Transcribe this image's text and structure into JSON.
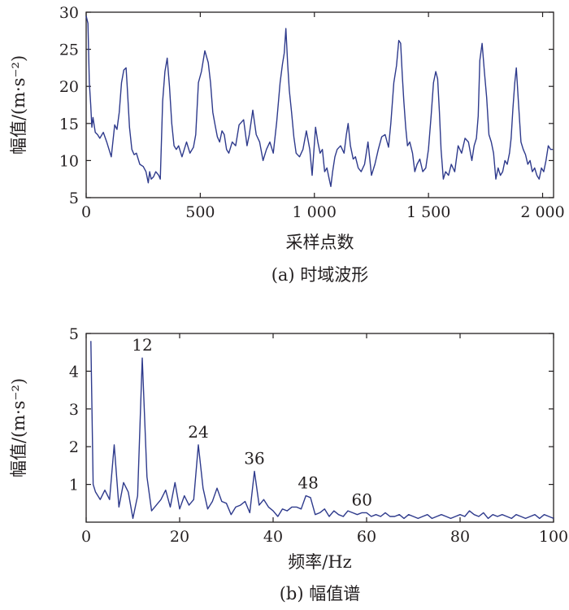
{
  "chart_data": [
    {
      "type": "line",
      "caption": "(a) 时域波形",
      "xlabel": "采样点数",
      "ylabel": "幅值/(m·s⁻²)",
      "xlim": [
        0,
        2048
      ],
      "ylim": [
        5,
        30
      ],
      "xticks": [
        0,
        500,
        1000,
        1500,
        2000
      ],
      "xtick_labels": [
        "0",
        "500",
        "1 000",
        "1 500",
        "2 000"
      ],
      "yticks": [
        5,
        10,
        15,
        20,
        25,
        30
      ],
      "ytick_labels": [
        "5",
        "10",
        "15",
        "20",
        "25",
        "30"
      ],
      "line_color": "#2e3a8c",
      "series": [
        {
          "x": [
            0,
            8,
            14,
            20,
            25,
            30,
            40,
            50,
            60,
            75,
            90,
            110,
            125,
            135,
            145,
            155,
            165,
            175,
            180,
            190,
            200,
            210,
            220,
            235,
            250,
            262,
            272,
            278,
            285,
            295,
            305,
            318,
            325,
            335,
            345,
            355,
            365,
            375,
            385,
            395,
            405,
            420,
            440,
            455,
            470,
            480,
            492,
            505,
            520,
            535,
            545,
            555,
            565,
            575,
            585,
            595,
            605,
            615,
            625,
            640,
            655,
            670,
            690,
            705,
            715,
            730,
            745,
            760,
            775,
            790,
            805,
            820,
            835,
            850,
            860,
            868,
            875,
            883,
            890,
            900,
            910,
            920,
            935,
            950,
            965,
            980,
            990,
            1005,
            1015,
            1025,
            1035,
            1045,
            1055,
            1065,
            1072,
            1080,
            1090,
            1100,
            1115,
            1130,
            1140,
            1148,
            1158,
            1170,
            1180,
            1192,
            1205,
            1220,
            1235,
            1250,
            1265,
            1280,
            1295,
            1310,
            1325,
            1335,
            1348,
            1360,
            1370,
            1378,
            1385,
            1392,
            1400,
            1408,
            1418,
            1430,
            1440,
            1450,
            1462,
            1475,
            1488,
            1500,
            1512,
            1522,
            1532,
            1540,
            1548,
            1555,
            1565,
            1575,
            1588,
            1600,
            1615,
            1630,
            1645,
            1660,
            1675,
            1690,
            1700,
            1710,
            1718,
            1725,
            1735,
            1745,
            1755,
            1765,
            1775,
            1785,
            1795,
            1805,
            1815,
            1825,
            1835,
            1845,
            1855,
            1862,
            1870,
            1878,
            1885,
            1895,
            1905,
            1915,
            1925,
            1935,
            1945,
            1955,
            1965,
            1975,
            1985,
            1995,
            2005,
            2015,
            2025,
            2035,
            2045
          ],
          "y": [
            29.5,
            28.5,
            20.5,
            17.5,
            14.5,
            15.8,
            13.8,
            13.5,
            13.0,
            13.8,
            12.5,
            10.5,
            14.8,
            14.2,
            16.5,
            20.5,
            22.2,
            22.5,
            20.0,
            14.5,
            11.5,
            10.8,
            11.0,
            9.5,
            9.2,
            8.5,
            7.0,
            8.5,
            7.5,
            7.8,
            8.5,
            8.0,
            7.5,
            18.0,
            22.0,
            23.8,
            20.0,
            15.0,
            12.0,
            11.5,
            12.0,
            10.5,
            12.5,
            11.0,
            11.8,
            13.5,
            20.5,
            22.0,
            24.8,
            23.2,
            20.5,
            16.5,
            14.8,
            13.2,
            12.5,
            14.0,
            13.5,
            11.5,
            11.0,
            12.5,
            12.0,
            14.8,
            15.5,
            12.0,
            13.5,
            16.8,
            13.5,
            12.5,
            10.0,
            11.5,
            12.5,
            11.0,
            15.2,
            20.5,
            23.0,
            24.5,
            27.8,
            23.0,
            19.5,
            16.5,
            13.2,
            11.0,
            10.5,
            11.5,
            14.0,
            11.5,
            8.0,
            14.5,
            12.5,
            11.0,
            11.5,
            8.5,
            9.0,
            7.5,
            6.5,
            8.5,
            10.5,
            11.5,
            12.0,
            11.0,
            13.5,
            15.0,
            12.0,
            10.2,
            10.5,
            9.0,
            8.5,
            9.5,
            12.5,
            8.0,
            9.5,
            11.5,
            13.2,
            13.5,
            11.8,
            15.0,
            20.5,
            22.8,
            26.2,
            25.8,
            21.5,
            18.0,
            14.5,
            12.0,
            12.5,
            11.0,
            8.5,
            9.5,
            10.2,
            8.5,
            9.0,
            11.5,
            16.2,
            20.5,
            22.0,
            21.0,
            16.5,
            11.5,
            7.5,
            8.5,
            8.0,
            9.5,
            8.5,
            12.0,
            11.0,
            13.0,
            12.5,
            10.0,
            12.0,
            13.0,
            16.0,
            23.5,
            25.8,
            22.0,
            18.5,
            13.5,
            12.5,
            11.0,
            7.5,
            9.0,
            8.0,
            8.5,
            10.0,
            9.5,
            11.0,
            13.0,
            17.0,
            20.5,
            22.5,
            17.5,
            12.5,
            11.5,
            10.8,
            9.5,
            10.0,
            8.5,
            9.0,
            8.0,
            7.5,
            9.0,
            8.5,
            10.0,
            12.0,
            11.5,
            11.5
          ]
        }
      ]
    },
    {
      "type": "line",
      "caption": "(b) 幅值谱",
      "xlabel": "频率/Hz",
      "ylabel": "幅值/(m·s⁻²)",
      "xlim": [
        0,
        100
      ],
      "ylim": [
        0,
        5
      ],
      "xticks": [
        0,
        20,
        40,
        60,
        80,
        100
      ],
      "xtick_labels": [
        "0",
        "20",
        "40",
        "60",
        "80",
        "100"
      ],
      "yticks": [
        1,
        2,
        3,
        4,
        5
      ],
      "ytick_labels": [
        "1",
        "2",
        "3",
        "4",
        "5"
      ],
      "line_color": "#2e3a8c",
      "annotations": [
        {
          "text": "12",
          "x": 12,
          "y": 4.35
        },
        {
          "text": "24",
          "x": 24,
          "y": 2.05
        },
        {
          "text": "36",
          "x": 36,
          "y": 1.35
        },
        {
          "text": "48",
          "x": 47.5,
          "y": 0.7
        },
        {
          "text": "60",
          "x": 59,
          "y": 0.25
        }
      ],
      "series": [
        {
          "x": [
            1,
            1.5,
            2,
            3,
            4,
            5,
            6,
            7,
            8,
            9,
            10,
            11,
            12,
            13,
            14,
            15,
            16,
            17,
            18,
            19,
            20,
            21,
            22,
            23,
            24,
            25,
            26,
            27,
            28,
            29,
            30,
            31,
            32,
            33,
            34,
            35,
            36,
            37,
            38,
            39,
            40,
            41,
            42,
            43,
            44,
            45,
            46,
            47,
            48,
            49,
            50,
            51,
            52,
            53,
            54,
            55,
            56,
            57,
            58,
            59,
            60,
            61,
            62,
            63,
            64,
            65,
            66,
            67,
            68,
            69,
            70,
            71,
            72,
            73,
            74,
            75,
            76,
            77,
            78,
            79,
            80,
            81,
            82,
            83,
            84,
            85,
            86,
            87,
            88,
            89,
            90,
            91,
            92,
            93,
            94,
            95,
            96,
            97,
            98,
            99,
            100
          ],
          "y": [
            4.8,
            1.0,
            0.8,
            0.6,
            0.85,
            0.6,
            2.05,
            0.4,
            1.05,
            0.8,
            0.1,
            0.7,
            4.35,
            1.2,
            0.3,
            0.45,
            0.6,
            0.85,
            0.4,
            1.05,
            0.35,
            0.7,
            0.45,
            0.6,
            2.05,
            0.9,
            0.35,
            0.55,
            0.9,
            0.55,
            0.5,
            0.2,
            0.4,
            0.45,
            0.55,
            0.25,
            1.35,
            0.45,
            0.6,
            0.4,
            0.3,
            0.15,
            0.35,
            0.3,
            0.4,
            0.4,
            0.35,
            0.7,
            0.65,
            0.2,
            0.25,
            0.35,
            0.15,
            0.3,
            0.2,
            0.15,
            0.3,
            0.25,
            0.2,
            0.25,
            0.25,
            0.15,
            0.2,
            0.15,
            0.25,
            0.15,
            0.15,
            0.2,
            0.1,
            0.2,
            0.15,
            0.1,
            0.15,
            0.2,
            0.1,
            0.15,
            0.2,
            0.15,
            0.1,
            0.15,
            0.2,
            0.15,
            0.3,
            0.2,
            0.15,
            0.25,
            0.1,
            0.2,
            0.15,
            0.2,
            0.15,
            0.1,
            0.2,
            0.15,
            0.1,
            0.15,
            0.2,
            0.1,
            0.2,
            0.15,
            0.1
          ]
        }
      ]
    }
  ]
}
